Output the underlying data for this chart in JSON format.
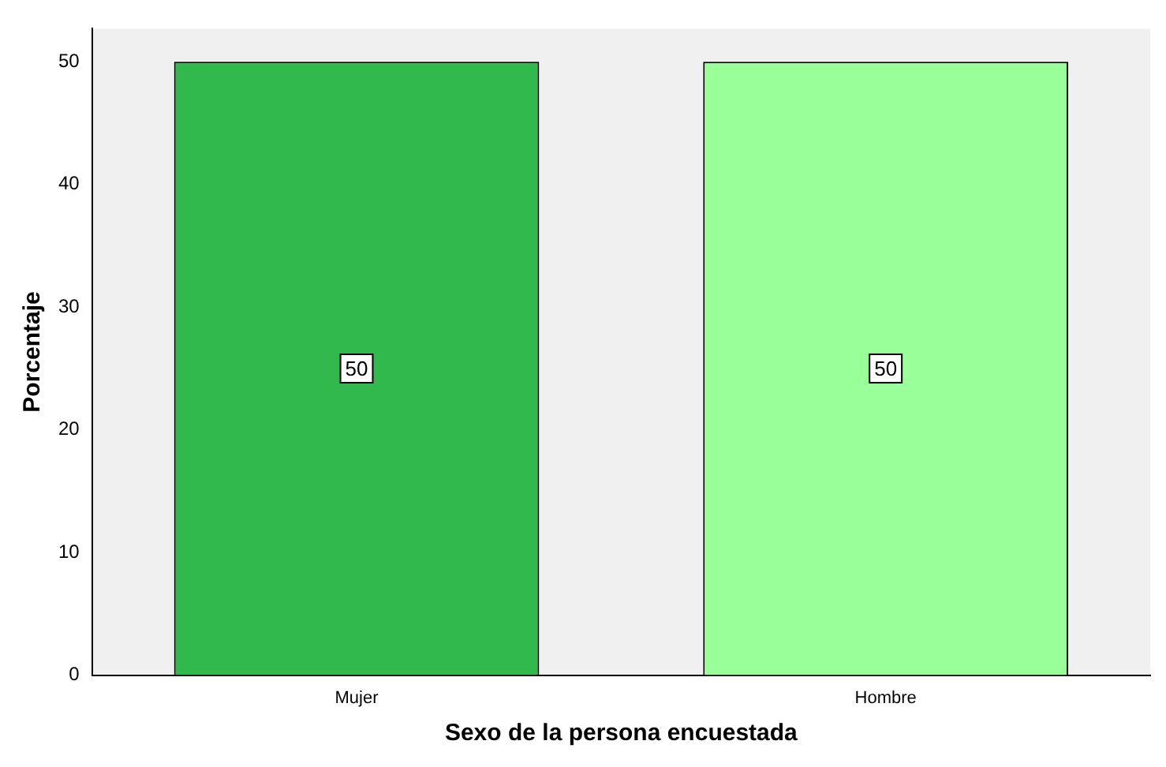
{
  "chart_data": {
    "type": "bar",
    "categories": [
      "Mujer",
      "Hombre"
    ],
    "values": [
      50,
      50
    ],
    "colors": [
      "#31b94d",
      "#99ff99"
    ],
    "xlabel": "Sexo de la persona encuestada",
    "ylabel": "Porcentaje",
    "ylim": [
      0,
      52.7
    ],
    "yticks": [
      0,
      10,
      20,
      30,
      40,
      50
    ],
    "data_labels": true,
    "grid": false,
    "legend": false
  }
}
